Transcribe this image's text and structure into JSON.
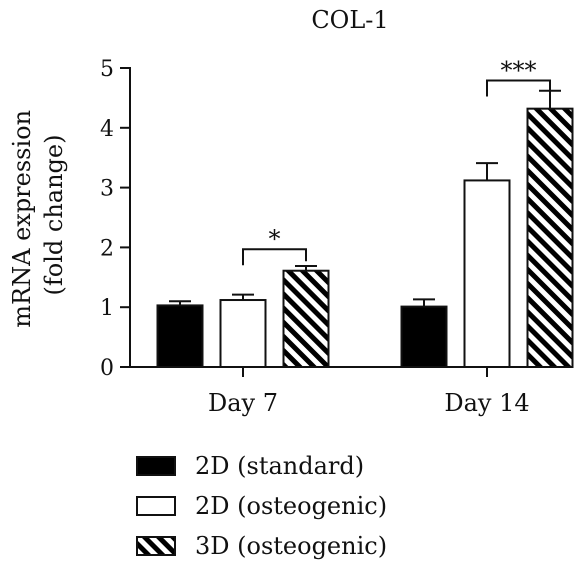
{
  "chart_data": {
    "type": "bar",
    "title": "COL-1",
    "ylabel_line1": "mRNA expression",
    "ylabel_line2": "(fold change)",
    "xlabel": "",
    "ylim": [
      0,
      5
    ],
    "yticks": [
      0,
      1,
      2,
      3,
      4,
      5
    ],
    "categories": [
      "Day 7",
      "Day 14"
    ],
    "series": [
      {
        "name": "2D (standard)",
        "fill": "#000000",
        "pattern": "solid",
        "values": [
          1.03,
          1.01
        ],
        "errors": [
          0.07,
          0.12
        ]
      },
      {
        "name": "2D (osteogenic)",
        "fill": "#ffffff",
        "pattern": "none",
        "values": [
          1.12,
          3.12
        ],
        "errors": [
          0.09,
          0.29
        ]
      },
      {
        "name": "3D (osteogenic)",
        "fill": "#ffffff",
        "pattern": "diagonal-stripes",
        "values": [
          1.61,
          4.32
        ],
        "errors": [
          0.08,
          0.3
        ]
      }
    ],
    "significance": [
      {
        "category": 0,
        "from_series": 1,
        "to_series": 2,
        "label": "*",
        "level": 1.97
      },
      {
        "category": 1,
        "from_series": 1,
        "to_series": 2,
        "label": "***",
        "level": 4.79
      }
    ],
    "legend_position": "bottom-left",
    "grid": false
  }
}
